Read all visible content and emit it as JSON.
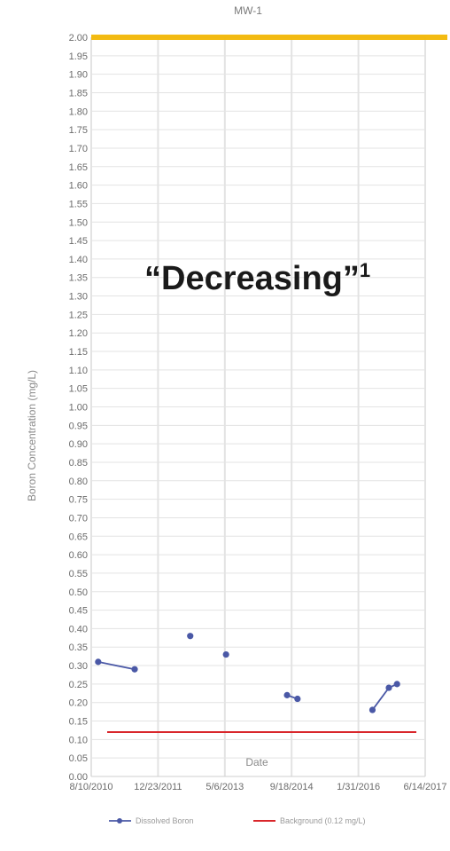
{
  "chart_data": {
    "type": "line",
    "title": "MW-1",
    "xlabel": "Date",
    "ylabel": "Boron Concentration  (mg/L)",
    "ylim": [
      0,
      2.0
    ],
    "ytick_step": 0.05,
    "x_ticks": [
      "8/10/2010",
      "12/23/2011",
      "5/6/2013",
      "9/18/2014",
      "1/31/2016",
      "6/14/2017"
    ],
    "x_range": [
      "2010-08-10",
      "2017-06-14"
    ],
    "grid": true,
    "legend_position": "bottom",
    "series": [
      {
        "name": "Dissolved Boron",
        "color": "#4a58a6",
        "segments": [
          [
            {
              "x": "2010-10-01",
              "y": 0.31
            },
            {
              "x": "2011-07-01",
              "y": 0.29
            }
          ],
          [
            {
              "x": "2012-08-20",
              "y": 0.38
            }
          ],
          [
            {
              "x": "2013-05-15",
              "y": 0.33
            }
          ],
          [
            {
              "x": "2014-08-15",
              "y": 0.22
            },
            {
              "x": "2014-11-01",
              "y": 0.21
            }
          ],
          [
            {
              "x": "2016-05-15",
              "y": 0.18
            },
            {
              "x": "2016-09-15",
              "y": 0.24
            },
            {
              "x": "2016-11-15",
              "y": 0.25
            }
          ]
        ]
      },
      {
        "name": "Background (0.12 mg/L)",
        "color": "#d9262b",
        "type": "hline",
        "y": 0.12
      }
    ],
    "threshold_band": {
      "y": 2.0,
      "color": "#f2b705"
    },
    "annotation": {
      "text": "“Decreasing”",
      "superscript": "1"
    }
  }
}
